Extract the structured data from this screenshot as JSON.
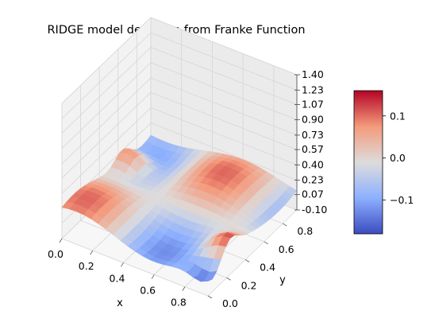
{
  "chart_data": {
    "type": "surface",
    "title": "RIDGE model deviation from Franke Function",
    "xlabel": "x",
    "ylabel": "y",
    "zlabel": "",
    "x_ticks": [
      "0.0",
      "0.2",
      "0.4",
      "0.6",
      "0.8"
    ],
    "y_ticks": [
      "0.0",
      "0.2",
      "0.4",
      "0.6",
      "0.8"
    ],
    "z_ticks": [
      "-0.10",
      "0.07",
      "0.23",
      "0.40",
      "0.57",
      "0.73",
      "0.90",
      "1.07",
      "1.23",
      "1.40"
    ],
    "xlim": [
      0,
      0.95
    ],
    "ylim": [
      0,
      0.95
    ],
    "zlim": [
      -0.1,
      1.4
    ],
    "colormap": "coolwarm",
    "colorbar": {
      "range": [
        -0.18,
        0.16
      ],
      "ticks": [
        "0.1",
        "0.0",
        "−0.1"
      ],
      "tick_values": [
        0.1,
        0.0,
        -0.1
      ]
    },
    "grid": true
  }
}
